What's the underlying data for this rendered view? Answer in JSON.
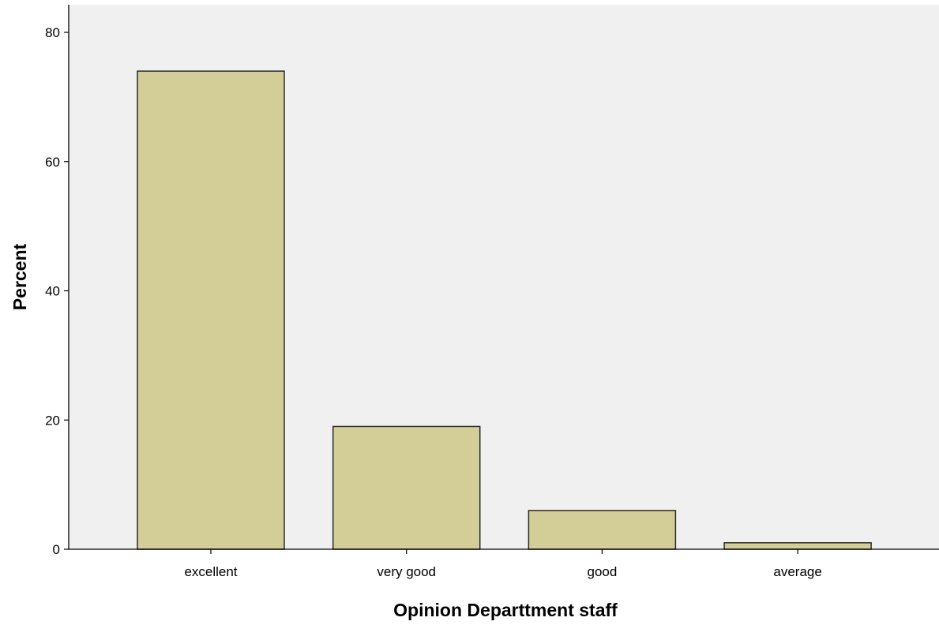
{
  "chart_data": {
    "type": "bar",
    "title": "",
    "xlabel": "Opinion Departtment staff",
    "ylabel": "Percent",
    "categories": [
      "excellent",
      "very good",
      "good",
      "average"
    ],
    "values": [
      74,
      19,
      6,
      1
    ],
    "ylim": [
      0,
      84
    ],
    "yticks": [
      0,
      20,
      40,
      60,
      80
    ],
    "grid": false,
    "legend": "none",
    "colors": {
      "bar_fill": "#d3ce97",
      "bar_stroke": "#2b2b2b",
      "plot_background": "#f0f0f0",
      "axis": "#000000"
    }
  }
}
